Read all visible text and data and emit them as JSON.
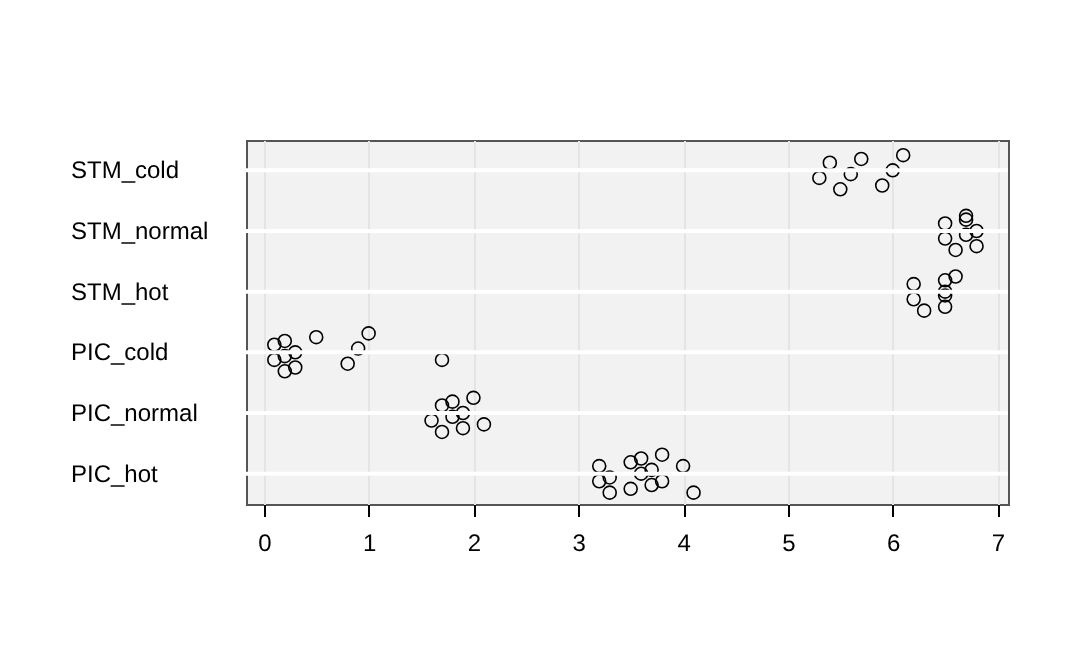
{
  "chart_data": {
    "type": "scatter",
    "orientation": "horizontal",
    "marker": "circle",
    "grid": true,
    "categories": [
      "STM_cold",
      "STM_normal",
      "STM_hot",
      "PIC_cold",
      "PIC_normal",
      "PIC_hot"
    ],
    "series": [
      {
        "x": [
          "STM_cold",
          "STM_cold",
          "STM_cold",
          "STM_cold",
          "STM_cold",
          "STM_cold",
          "STM_cold",
          "STM_cold",
          "STM_normal",
          "STM_normal",
          "STM_normal",
          "STM_normal",
          "STM_normal",
          "STM_normal",
          "STM_normal",
          "STM_normal",
          "STM_hot",
          "STM_hot",
          "STM_hot",
          "STM_hot",
          "STM_hot",
          "STM_hot",
          "STM_hot",
          "STM_hot",
          "PIC_cold",
          "PIC_cold",
          "PIC_cold",
          "PIC_cold",
          "PIC_cold",
          "PIC_cold",
          "PIC_cold",
          "PIC_cold",
          "PIC_cold",
          "PIC_cold",
          "PIC_cold",
          "PIC_cold",
          "PIC_normal",
          "PIC_normal",
          "PIC_normal",
          "PIC_normal",
          "PIC_normal",
          "PIC_normal",
          "PIC_normal",
          "PIC_normal",
          "PIC_normal",
          "PIC_hot",
          "PIC_hot",
          "PIC_hot",
          "PIC_hot",
          "PIC_hot",
          "PIC_hot",
          "PIC_hot",
          "PIC_hot",
          "PIC_hot",
          "PIC_hot",
          "PIC_hot",
          "PIC_hot",
          "PIC_hot",
          "PIC_hot"
        ],
        "values": [
          5.3,
          5.4,
          5.5,
          5.6,
          5.7,
          5.9,
          6.0,
          6.1,
          6.5,
          6.5,
          6.6,
          6.7,
          6.7,
          6.8,
          6.8,
          6.7,
          6.2,
          6.2,
          6.3,
          6.5,
          6.5,
          6.5,
          6.5,
          6.6,
          0.1,
          0.1,
          0.2,
          0.2,
          0.2,
          0.3,
          0.3,
          0.5,
          0.8,
          0.9,
          1.0,
          1.7,
          1.6,
          1.7,
          1.7,
          1.8,
          1.8,
          1.9,
          1.9,
          2.0,
          2.1,
          3.2,
          3.2,
          3.3,
          3.3,
          3.5,
          3.5,
          3.6,
          3.6,
          3.7,
          3.7,
          3.8,
          3.8,
          4.0,
          4.1
        ]
      }
    ],
    "xlim": [
      -0.17,
      7.1
    ],
    "xticks": [
      0,
      1,
      2,
      3,
      4,
      5,
      6,
      7
    ]
  }
}
